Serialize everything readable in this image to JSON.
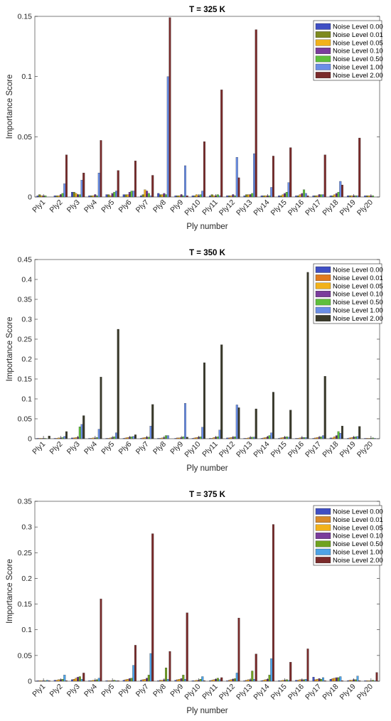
{
  "legend_labels": [
    "Noise Level 0.00",
    "Noise Level 0.01",
    "Noise Level 0.05",
    "Noise Level 0.10",
    "Noise Level 0.50",
    "Noise Level 1.00",
    "Noise Level 2.00"
  ],
  "chart_data": [
    {
      "type": "bar",
      "title": "T = 325 K",
      "xlabel": "Ply number",
      "ylabel": "Importance Score",
      "ylim": [
        0,
        0.15
      ],
      "yticks": [
        0,
        0.05,
        0.1,
        0.15
      ],
      "ytick_labels": [
        "0",
        "0.05",
        "0.1",
        "0.15"
      ],
      "legend_position": "top-right",
      "categories": [
        "Ply1",
        "Ply2",
        "Ply3",
        "Ply4",
        "Ply5",
        "Ply6",
        "Ply7",
        "Ply8",
        "Ply9",
        "Ply10",
        "Ply11",
        "Ply12",
        "Ply13",
        "Ply14",
        "Ply15",
        "Ply16",
        "Ply17",
        "Ply18",
        "Ply19",
        "Ply20"
      ],
      "colors": [
        "#3f4fc4",
        "#7e8a1e",
        "#f2b21b",
        "#7a3c9c",
        "#5fbf3b",
        "#6a8ee6",
        "#7a2a2a"
      ],
      "series": [
        {
          "name": "Noise Level 0.00",
          "values": [
            0.001,
            0.001,
            0.004,
            0.001,
            0.002,
            0.002,
            0.001,
            0.003,
            0.001,
            0.001,
            0.001,
            0.001,
            0.001,
            0.001,
            0.001,
            0.001,
            0.001,
            0.001,
            0.001,
            0.001
          ]
        },
        {
          "name": "Noise Level 0.01",
          "values": [
            0.002,
            0.001,
            0.004,
            0.001,
            0.002,
            0.002,
            0.002,
            0.002,
            0.001,
            0.001,
            0.002,
            0.001,
            0.002,
            0.001,
            0.001,
            0.001,
            0.001,
            0.001,
            0.001,
            0.001
          ]
        },
        {
          "name": "Noise Level 0.05",
          "values": [
            0.001,
            0.001,
            0.003,
            0.001,
            0.001,
            0.002,
            0.006,
            0.002,
            0.001,
            0.002,
            0.001,
            0.001,
            0.002,
            0.001,
            0.002,
            0.002,
            0.001,
            0.002,
            0.001,
            0.001
          ]
        },
        {
          "name": "Noise Level 0.10",
          "values": [
            0.001,
            0.002,
            0.002,
            0.002,
            0.003,
            0.004,
            0.005,
            0.003,
            0.002,
            0.001,
            0.001,
            0.002,
            0.002,
            0.001,
            0.003,
            0.003,
            0.002,
            0.003,
            0.001,
            0.001
          ]
        },
        {
          "name": "Noise Level 0.50",
          "values": [
            0.001,
            0.003,
            0.002,
            0.001,
            0.004,
            0.005,
            0.003,
            0.002,
            0.001,
            0.002,
            0.002,
            0.001,
            0.003,
            0.001,
            0.004,
            0.006,
            0.002,
            0.004,
            0.001,
            0.001
          ]
        },
        {
          "name": "Noise Level 1.00",
          "values": [
            0.0,
            0.011,
            0.014,
            0.02,
            0.005,
            0.005,
            0.001,
            0.1,
            0.026,
            0.005,
            0.001,
            0.033,
            0.036,
            0.008,
            0.012,
            0.003,
            0.002,
            0.013,
            0.001,
            0.0
          ]
        },
        {
          "name": "Noise Level 2.00",
          "values": [
            0.0,
            0.035,
            0.02,
            0.047,
            0.022,
            0.03,
            0.018,
            0.149,
            0.001,
            0.046,
            0.089,
            0.016,
            0.139,
            0.034,
            0.041,
            0.001,
            0.035,
            0.01,
            0.049,
            0.0
          ]
        }
      ]
    },
    {
      "type": "bar",
      "title": "T = 350 K",
      "xlabel": "Ply number",
      "ylabel": "Importance Score",
      "ylim": [
        0,
        0.45
      ],
      "yticks": [
        0,
        0.05,
        0.1,
        0.15,
        0.2,
        0.25,
        0.3,
        0.35,
        0.4,
        0.45
      ],
      "ytick_labels": [
        "0",
        "0.05",
        "0.1",
        "0.15",
        "0.2",
        "0.25",
        "0.3",
        "0.35",
        "0.4",
        "0.45"
      ],
      "legend_position": "top-right",
      "categories": [
        "Ply1",
        "Ply2",
        "Ply3",
        "Ply4",
        "Ply5",
        "Ply6",
        "Ply7",
        "Ply8",
        "Ply9",
        "Ply10",
        "Ply11",
        "Ply12",
        "Ply13",
        "Ply14",
        "Ply15",
        "Ply16",
        "Ply17",
        "Ply18",
        "Ply19",
        "Ply20"
      ],
      "colors": [
        "#3f4fc4",
        "#e07a1f",
        "#f2b21b",
        "#7a3c9c",
        "#5fbf3b",
        "#6a8ee6",
        "#3a3a2a"
      ],
      "series": [
        {
          "name": "Noise Level 0.00",
          "values": [
            0.001,
            0.001,
            0.002,
            0.001,
            0.001,
            0.001,
            0.001,
            0.001,
            0.001,
            0.001,
            0.001,
            0.002,
            0.001,
            0.001,
            0.001,
            0.001,
            0.001,
            0.002,
            0.001,
            0.001
          ]
        },
        {
          "name": "Noise Level 0.01",
          "values": [
            0.001,
            0.001,
            0.002,
            0.001,
            0.001,
            0.002,
            0.002,
            0.001,
            0.002,
            0.002,
            0.001,
            0.002,
            0.001,
            0.002,
            0.002,
            0.001,
            0.002,
            0.002,
            0.002,
            0.001
          ]
        },
        {
          "name": "Noise Level 0.05",
          "values": [
            0.001,
            0.002,
            0.003,
            0.002,
            0.002,
            0.003,
            0.003,
            0.002,
            0.002,
            0.003,
            0.003,
            0.003,
            0.002,
            0.003,
            0.003,
            0.002,
            0.003,
            0.005,
            0.003,
            0.001
          ]
        },
        {
          "name": "Noise Level 0.10",
          "values": [
            0.001,
            0.002,
            0.004,
            0.002,
            0.003,
            0.004,
            0.004,
            0.003,
            0.003,
            0.004,
            0.004,
            0.004,
            0.003,
            0.005,
            0.004,
            0.003,
            0.004,
            0.008,
            0.004,
            0.001
          ]
        },
        {
          "name": "Noise Level 0.50",
          "values": [
            0.001,
            0.003,
            0.03,
            0.003,
            0.005,
            0.005,
            0.004,
            0.008,
            0.005,
            0.005,
            0.005,
            0.005,
            0.004,
            0.008,
            0.005,
            0.003,
            0.005,
            0.018,
            0.005,
            0.002
          ]
        },
        {
          "name": "Noise Level 1.00",
          "values": [
            0.0,
            0.006,
            0.036,
            0.024,
            0.015,
            0.006,
            0.032,
            0.008,
            0.089,
            0.029,
            0.022,
            0.085,
            0.004,
            0.015,
            0.004,
            0.003,
            0.008,
            0.014,
            0.006,
            0.001
          ]
        },
        {
          "name": "Noise Level 2.00",
          "values": [
            0.007,
            0.018,
            0.058,
            0.155,
            0.275,
            0.01,
            0.086,
            0.0,
            0.004,
            0.191,
            0.236,
            0.078,
            0.075,
            0.117,
            0.072,
            0.418,
            0.157,
            0.032,
            0.031,
            0.0
          ]
        }
      ]
    },
    {
      "type": "bar",
      "title": "T = 375 K",
      "xlabel": "Ply number",
      "ylabel": "Importance Score",
      "ylim": [
        0,
        0.35
      ],
      "yticks": [
        0,
        0.05,
        0.1,
        0.15,
        0.2,
        0.25,
        0.3,
        0.35
      ],
      "ytick_labels": [
        "0",
        "0.05",
        "0.1",
        "0.15",
        "0.2",
        "0.25",
        "0.3",
        "0.35"
      ],
      "legend_position": "top-right",
      "categories": [
        "Ply1",
        "Ply2",
        "Ply3",
        "Ply4",
        "Ply5",
        "Ply6",
        "Ply7",
        "Ply8",
        "Ply9",
        "Ply10",
        "Ply11",
        "Ply12",
        "Ply13",
        "Ply14",
        "Ply15",
        "Ply16",
        "Ply17",
        "Ply18",
        "Ply19",
        "Ply20"
      ],
      "colors": [
        "#3f4fc4",
        "#d88a2a",
        "#f2b21b",
        "#7a3c9c",
        "#6fa21e",
        "#4ea3e6",
        "#7a2a2a"
      ],
      "series": [
        {
          "name": "Noise Level 0.00",
          "values": [
            0.001,
            0.002,
            0.003,
            0.001,
            0.001,
            0.002,
            0.002,
            0.001,
            0.002,
            0.001,
            0.001,
            0.001,
            0.001,
            0.001,
            0.001,
            0.002,
            0.008,
            0.004,
            0.001,
            0.001
          ]
        },
        {
          "name": "Noise Level 0.01",
          "values": [
            0.001,
            0.002,
            0.004,
            0.001,
            0.001,
            0.003,
            0.003,
            0.002,
            0.003,
            0.001,
            0.002,
            0.002,
            0.002,
            0.002,
            0.001,
            0.002,
            0.003,
            0.005,
            0.002,
            0.001
          ]
        },
        {
          "name": "Noise Level 0.05",
          "values": [
            0.001,
            0.003,
            0.006,
            0.002,
            0.001,
            0.004,
            0.004,
            0.002,
            0.004,
            0.002,
            0.003,
            0.003,
            0.003,
            0.003,
            0.002,
            0.003,
            0.004,
            0.006,
            0.002,
            0.001
          ]
        },
        {
          "name": "Noise Level 0.10",
          "values": [
            0.001,
            0.003,
            0.008,
            0.002,
            0.001,
            0.005,
            0.006,
            0.003,
            0.005,
            0.002,
            0.004,
            0.004,
            0.003,
            0.004,
            0.002,
            0.003,
            0.005,
            0.007,
            0.003,
            0.001
          ]
        },
        {
          "name": "Noise Level 0.50",
          "values": [
            0.001,
            0.004,
            0.009,
            0.003,
            0.002,
            0.006,
            0.012,
            0.026,
            0.012,
            0.004,
            0.006,
            0.005,
            0.02,
            0.012,
            0.003,
            0.003,
            0.004,
            0.007,
            0.003,
            0.002
          ]
        },
        {
          "name": "Noise Level 1.00",
          "values": [
            0.002,
            0.012,
            0.004,
            0.006,
            0.001,
            0.031,
            0.054,
            0.004,
            0.004,
            0.009,
            0.003,
            0.016,
            0.004,
            0.044,
            0.002,
            0.004,
            0.007,
            0.009,
            0.01,
            0.001
          ]
        },
        {
          "name": "Noise Level 2.00",
          "values": [
            0.001,
            0.001,
            0.016,
            0.16,
            0.001,
            0.07,
            0.287,
            0.058,
            0.133,
            0.001,
            0.007,
            0.123,
            0.053,
            0.305,
            0.037,
            0.063,
            0.001,
            0.001,
            0.001,
            0.017
          ]
        }
      ]
    }
  ]
}
